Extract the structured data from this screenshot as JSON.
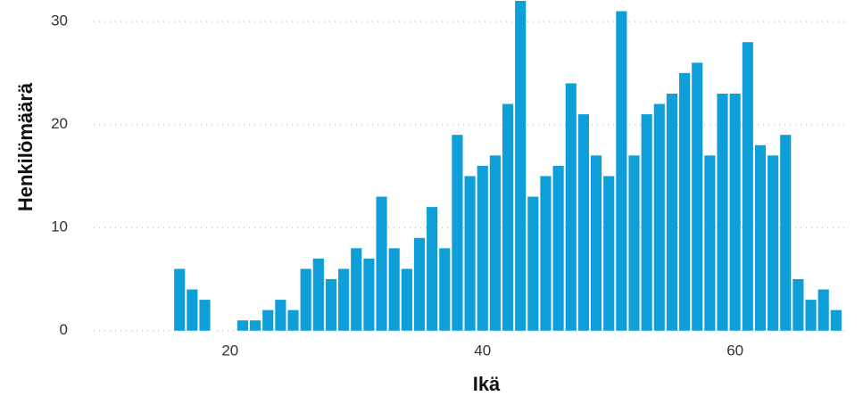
{
  "chart_data": {
    "type": "histogram",
    "xlabel": "Ikä",
    "ylabel": "Henkilömäärä",
    "bins": [
      15.5,
      16.5,
      17.5,
      18.5,
      19.5,
      20.5,
      21.5,
      22.5,
      23.5,
      24.5,
      25.5,
      26.5,
      27.5,
      28.5,
      29.5,
      30.5,
      31.5,
      32.5,
      33.5,
      34.5,
      35.5,
      36.5,
      37.5,
      38.5,
      39.5,
      40.5,
      41.5,
      42.5,
      43.5,
      44.5,
      45.5,
      46.5,
      47.5,
      48.5,
      49.5,
      50.5,
      51.5,
      52.5,
      53.5,
      54.5,
      55.5,
      56.5,
      57.5,
      58.5,
      59.5,
      60.5,
      61.5,
      62.5,
      63.5,
      64.5,
      65.5,
      66.5,
      67.5,
      68.5
    ],
    "values": [
      6,
      4,
      3,
      0,
      0,
      1,
      1,
      2,
      3,
      2,
      6,
      7,
      5,
      6,
      8,
      7,
      13,
      8,
      6,
      9,
      12,
      8,
      19,
      15,
      16,
      17,
      22,
      32,
      13,
      15,
      16,
      24,
      21,
      17,
      15,
      31,
      17,
      21,
      22,
      23,
      25,
      26,
      17,
      23,
      23,
      28,
      18,
      17,
      19,
      5,
      3,
      4,
      2
    ],
    "color": "#0f9fd8",
    "xlim": [
      9.2,
      69
    ],
    "xticks": [
      20,
      40,
      60
    ],
    "ylim": [
      -0.8,
      32
    ],
    "yticks": [
      0,
      10,
      20,
      30
    ],
    "grid": true
  }
}
